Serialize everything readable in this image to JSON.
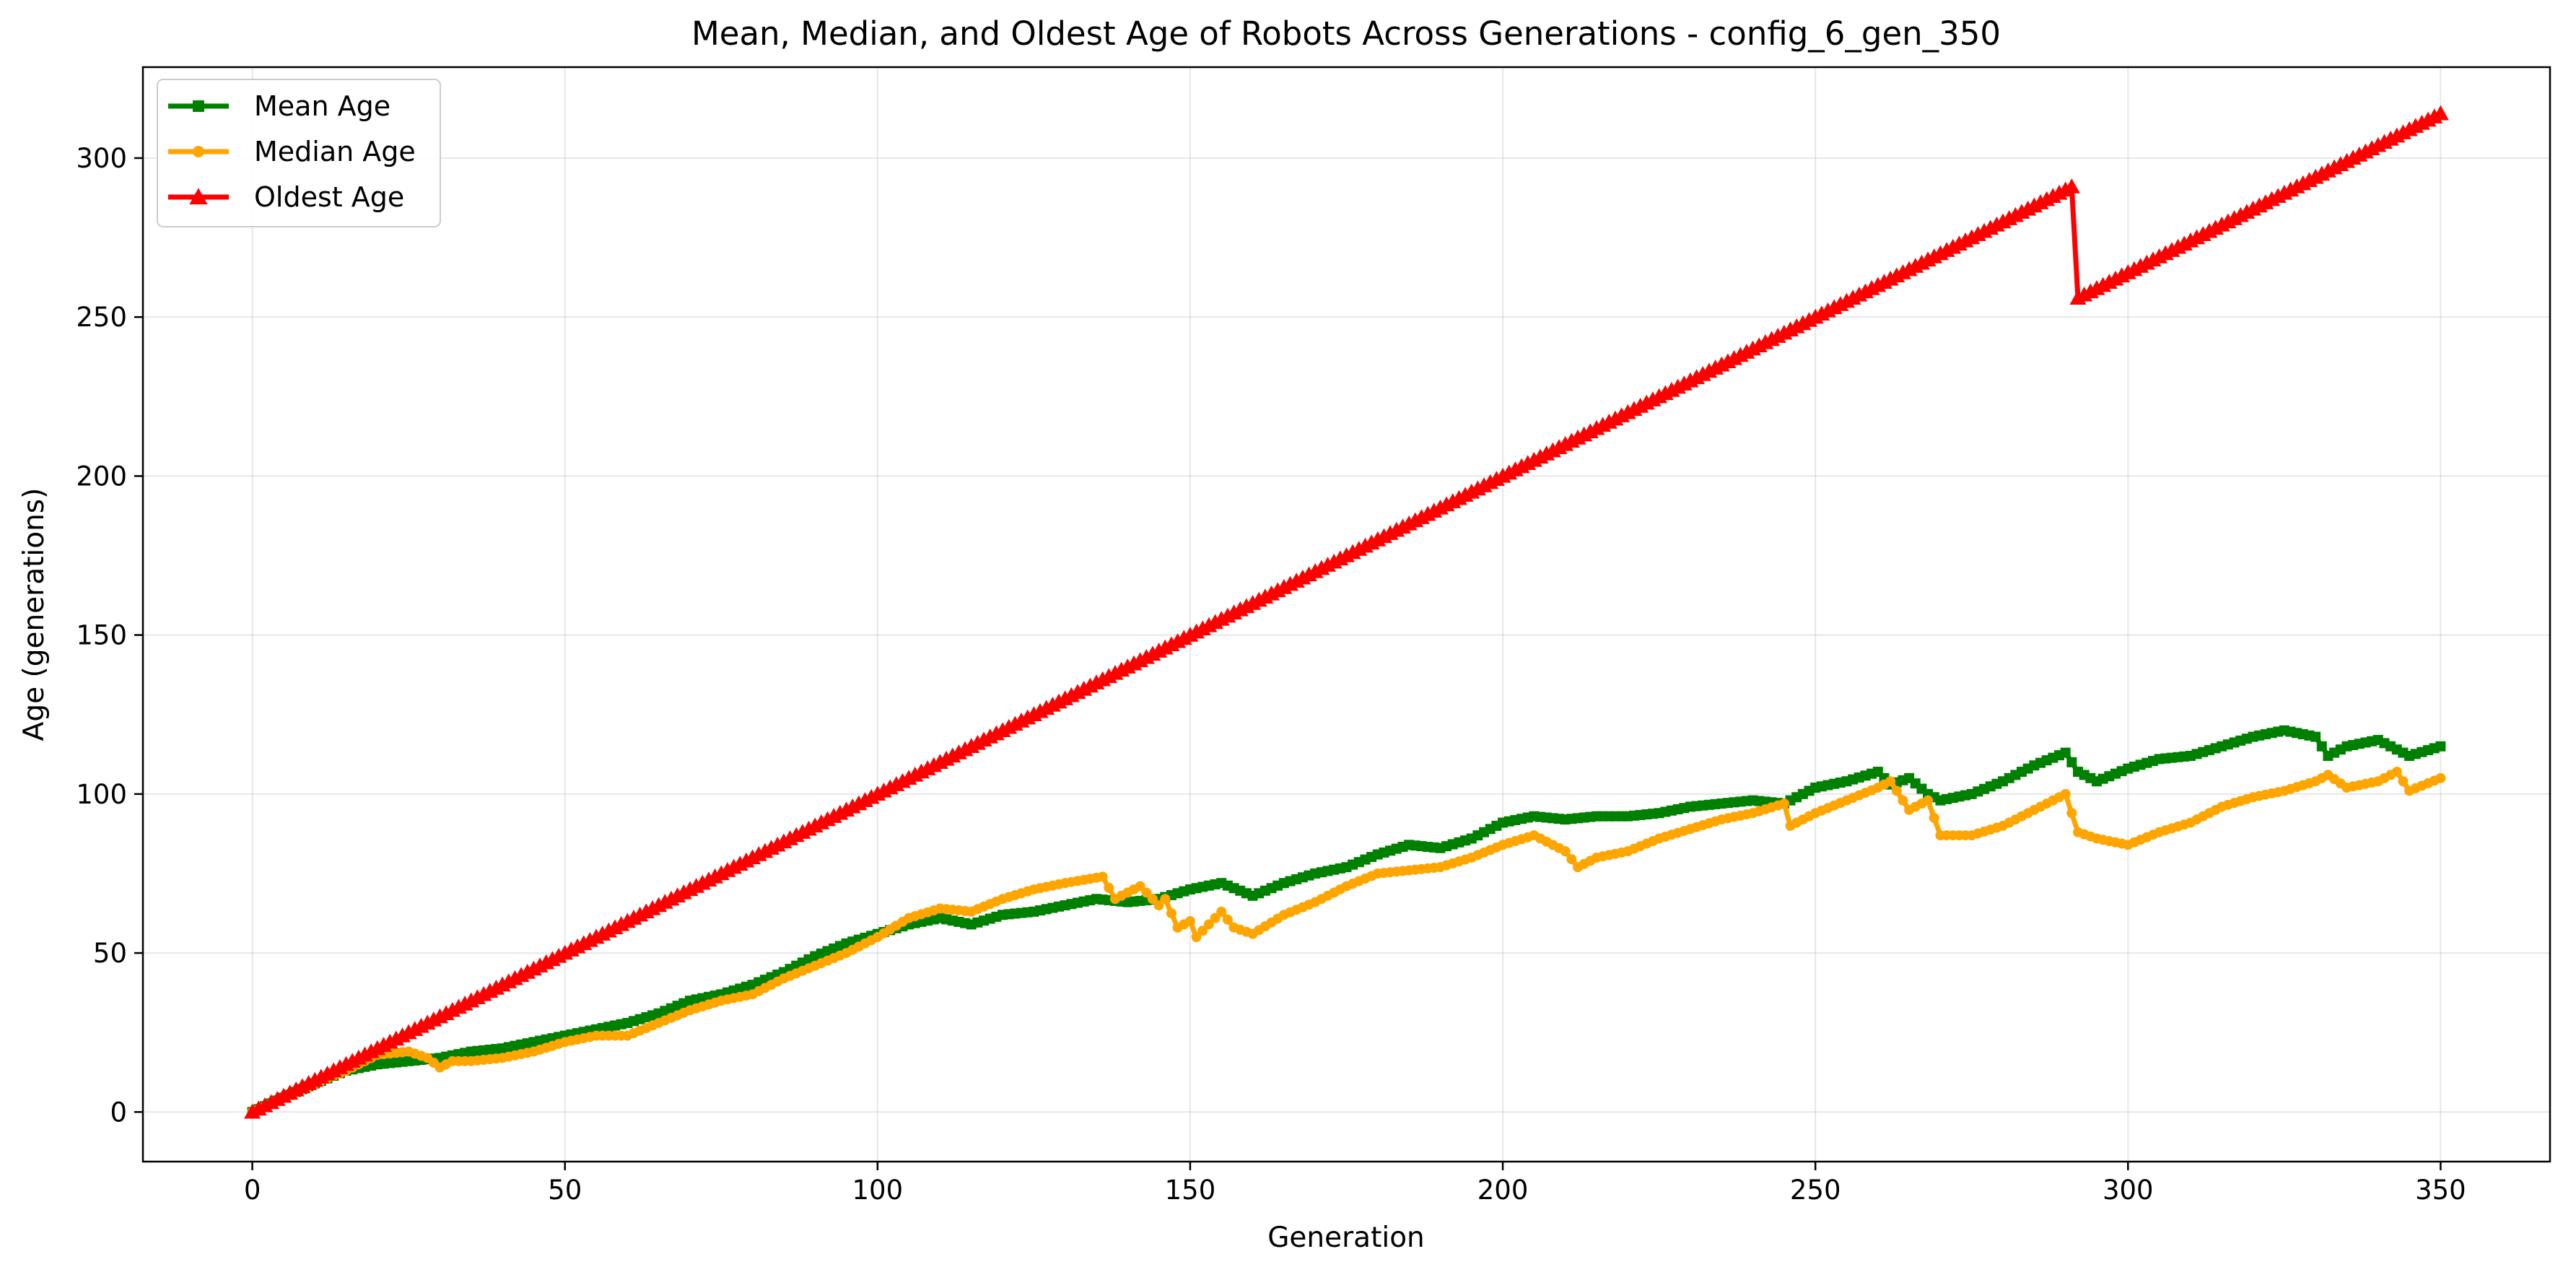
{
  "chart_data": {
    "type": "line",
    "title": "Mean, Median, and Oldest Age of Robots Across Generations - config_6_gen_350",
    "xlabel": "Generation",
    "ylabel": "Age (generations)",
    "xlim": [
      -17.5,
      367.5
    ],
    "ylim": [
      -15.6,
      328.6
    ],
    "xticks": [
      0,
      50,
      100,
      150,
      200,
      250,
      300,
      350
    ],
    "yticks": [
      0,
      50,
      100,
      150,
      200,
      250,
      300
    ],
    "grid": true,
    "legend_position": "top-left",
    "series": [
      {
        "name": "Mean Age",
        "color": "#008000",
        "marker": "square",
        "x": [
          0,
          5,
          10,
          15,
          20,
          25,
          30,
          35,
          40,
          45,
          50,
          55,
          60,
          65,
          70,
          75,
          80,
          85,
          90,
          95,
          100,
          105,
          110,
          115,
          120,
          125,
          130,
          135,
          140,
          145,
          150,
          155,
          160,
          165,
          170,
          175,
          180,
          185,
          190,
          195,
          200,
          205,
          210,
          215,
          220,
          225,
          230,
          235,
          240,
          245,
          250,
          255,
          260,
          262,
          265,
          268,
          270,
          275,
          280,
          285,
          290,
          292,
          295,
          300,
          305,
          310,
          315,
          320,
          325,
          330,
          332,
          335,
          340,
          345,
          350
        ],
        "y": [
          0,
          4.5,
          9,
          13,
          15,
          16,
          17,
          19,
          20,
          22,
          24,
          26,
          28,
          31,
          35,
          37,
          40,
          44,
          49,
          53,
          56,
          59,
          61,
          59,
          62,
          63,
          65,
          67,
          66,
          67,
          70,
          72,
          68,
          72,
          75,
          77,
          81,
          84,
          83,
          86,
          91,
          93,
          92,
          93,
          93,
          94,
          96,
          97,
          98,
          97,
          102,
          104,
          107,
          103,
          105,
          100,
          98,
          100,
          104,
          109,
          113,
          107,
          104,
          108,
          111,
          112,
          115,
          118,
          120,
          118,
          112,
          115,
          117,
          112,
          115
        ]
      },
      {
        "name": "Median Age",
        "color": "#ffa500",
        "marker": "circle",
        "x": [
          0,
          5,
          10,
          15,
          20,
          25,
          28,
          30,
          32,
          35,
          40,
          45,
          50,
          55,
          60,
          65,
          70,
          75,
          80,
          85,
          90,
          95,
          100,
          105,
          110,
          115,
          120,
          125,
          130,
          136,
          138,
          142,
          145,
          146,
          148,
          150,
          151,
          155,
          157,
          160,
          165,
          170,
          175,
          180,
          185,
          190,
          195,
          200,
          205,
          210,
          212,
          215,
          220,
          225,
          230,
          235,
          240,
          245,
          246,
          250,
          255,
          260,
          262,
          265,
          268,
          270,
          275,
          280,
          285,
          290,
          292,
          295,
          300,
          305,
          310,
          315,
          320,
          325,
          330,
          332,
          335,
          340,
          343,
          345,
          350
        ],
        "y": [
          0,
          4.5,
          9,
          13,
          18,
          19,
          17,
          14,
          16,
          16,
          17,
          19,
          22,
          24,
          24,
          28,
          32,
          35,
          37,
          42,
          46,
          50,
          55,
          61,
          64,
          63,
          67,
          70,
          72,
          74,
          67,
          71,
          65,
          67,
          58,
          60,
          55,
          63,
          58,
          56,
          62,
          66,
          71,
          75,
          76,
          77,
          80,
          84,
          87,
          82,
          77,
          80,
          82,
          86,
          89,
          92,
          94,
          97,
          90,
          94,
          98,
          102,
          104,
          95,
          98,
          87,
          87,
          90,
          95,
          100,
          88,
          86,
          84,
          88,
          91,
          96,
          99,
          101,
          104,
          106,
          102,
          104,
          107,
          101,
          105
        ]
      },
      {
        "name": "Oldest Age",
        "color": "#ff0000",
        "marker": "triangle",
        "x": [
          0,
          291,
          292,
          350
        ],
        "y": [
          0,
          291,
          256,
          314
        ]
      }
    ]
  }
}
